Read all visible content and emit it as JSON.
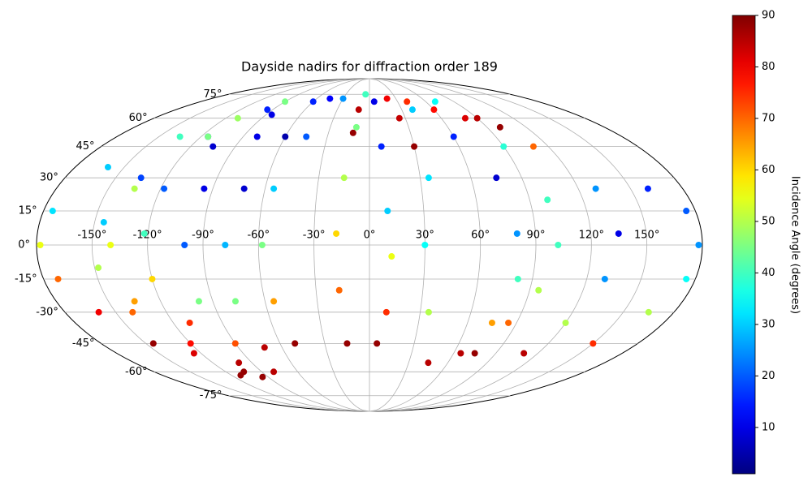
{
  "chart_data": {
    "type": "scatter",
    "projection": "mollweide",
    "title": "Dayside nadirs for diffraction order 189",
    "colorbar_label": "Incidence Angle (degrees)",
    "colormap": "jet",
    "clim": [
      1,
      90
    ],
    "cticks": [
      10,
      20,
      30,
      40,
      50,
      60,
      70,
      80,
      90
    ],
    "xlim": [
      -180,
      180
    ],
    "ylim": [
      -90,
      90
    ],
    "grid": true,
    "xticks": [
      {
        "value": -150,
        "label": "-150°"
      },
      {
        "value": -120,
        "label": "-120°"
      },
      {
        "value": -90,
        "label": "-90°"
      },
      {
        "value": -60,
        "label": "-60°"
      },
      {
        "value": -30,
        "label": "-30°"
      },
      {
        "value": 0,
        "label": "0°"
      },
      {
        "value": 30,
        "label": "30°"
      },
      {
        "value": 60,
        "label": "60°"
      },
      {
        "value": 90,
        "label": "90°"
      },
      {
        "value": 120,
        "label": "120°"
      },
      {
        "value": 150,
        "label": "150°"
      }
    ],
    "yticks": [
      {
        "value": -75,
        "label": "-75°"
      },
      {
        "value": -60,
        "label": "-60°"
      },
      {
        "value": -45,
        "label": "-45°"
      },
      {
        "value": -30,
        "label": "-30°"
      },
      {
        "value": -15,
        "label": "-15°"
      },
      {
        "value": 0,
        "label": "0°"
      },
      {
        "value": 15,
        "label": "15°"
      },
      {
        "value": 30,
        "label": "30°"
      },
      {
        "value": 45,
        "label": "45°"
      },
      {
        "value": 60,
        "label": "60°"
      },
      {
        "value": 75,
        "label": "75°"
      }
    ],
    "tracks": [
      {
        "lon": [
          -110,
          -135,
          -160,
          -175,
          -178,
          -172,
          -160,
          -145
        ],
        "lat": [
          60,
          50,
          35,
          15,
          0,
          -15,
          -30,
          -45
        ],
        "incidence": [
          48,
          40,
          30,
          32,
          55,
          70,
          80,
          88
        ]
      },
      {
        "lon": [
          -95,
          -115,
          -135,
          -145,
          -148,
          -140,
          -125,
          -112
        ],
        "lat": [
          65,
          50,
          30,
          10,
          -10,
          -30,
          -50,
          -62
        ],
        "incidence": [
          15,
          12,
          18,
          30,
          50,
          70,
          82,
          88
        ]
      },
      {
        "lon": [
          -85,
          -105,
          -118,
          -122,
          -120,
          -110,
          -100,
          -95
        ],
        "lat": [
          62,
          45,
          25,
          5,
          -15,
          -35,
          -55,
          -63
        ],
        "incidence": [
          10,
          8,
          20,
          40,
          60,
          75,
          85,
          88
        ]
      },
      {
        "lon": [
          -90,
          -115,
          -135,
          -140,
          -135,
          -120,
          -105
        ],
        "lat": [
          70,
          50,
          25,
          0,
          -25,
          -45,
          -60
        ],
        "incidence": [
          45,
          45,
          50,
          55,
          65,
          78,
          88
        ]
      },
      {
        "lon": [
          -60,
          -80,
          -95,
          -100,
          -98,
          -90,
          -80
        ],
        "lat": [
          70,
          50,
          25,
          0,
          -25,
          -45,
          -60
        ],
        "incidence": [
          15,
          10,
          10,
          20,
          45,
          72,
          85
        ]
      },
      {
        "lon": [
          -45,
          -60,
          -72,
          -78,
          -77,
          -72
        ],
        "lat": [
          72,
          50,
          25,
          0,
          -25,
          -47
        ],
        "incidence": [
          12,
          5,
          8,
          28,
          45,
          85
        ]
      },
      {
        "lon": [
          -30,
          -45,
          -55,
          -58,
          -55,
          -50
        ],
        "lat": [
          72,
          50,
          25,
          0,
          -25,
          -45
        ],
        "incidence": [
          25,
          20,
          30,
          45,
          65,
          88
        ]
      },
      {
        "lon": [
          -5,
          -10,
          -15,
          -18,
          -17,
          -15
        ],
        "lat": [
          75,
          55,
          30,
          5,
          -20,
          -45
        ],
        "incidence": [
          40,
          45,
          50,
          60,
          70,
          88
        ]
      },
      {
        "lon": [
          20,
          25,
          30
        ],
        "lat": [
          72,
          60,
          45
        ],
        "incidence": [
          80,
          84,
          88
        ]
      },
      {
        "lon": [
          -10,
          -12
        ],
        "lat": [
          65,
          52
        ],
        "incidence": [
          85,
          88
        ]
      },
      {
        "lon": [
          5,
          8,
          10,
          12,
          10,
          5
        ],
        "lat": [
          70,
          45,
          15,
          -5,
          -30,
          -45
        ],
        "incidence": [
          10,
          15,
          30,
          55,
          75,
          88
        ]
      },
      {
        "lon": [
          40,
          35,
          30,
          35,
          45
        ],
        "lat": [
          65,
          30,
          0,
          -30,
          -55
        ],
        "incidence": [
          30,
          32,
          35,
          50,
          85
        ]
      },
      {
        "lon": [
          60,
          75,
          80,
          82,
          75,
          65
        ],
        "lat": [
          50,
          30,
          5,
          -15,
          -35,
          -50
        ],
        "incidence": [
          15,
          8,
          25,
          40,
          65,
          85
        ]
      },
      {
        "lon": [
          70,
          90,
          100,
          102,
          95,
          85,
          75
        ],
        "lat": [
          70,
          45,
          20,
          0,
          -20,
          -35,
          -50
        ],
        "incidence": [
          35,
          38,
          40,
          40,
          50,
          70,
          88
        ]
      },
      {
        "lon": [
          90,
          110,
          130,
          135,
          130,
          120,
          110
        ],
        "lat": [
          60,
          45,
          25,
          5,
          -15,
          -35,
          -50
        ],
        "incidence": [
          85,
          70,
          25,
          10,
          25,
          50,
          85
        ]
      },
      {
        "lon": [
          160,
          175,
          178,
          175,
          165,
          150
        ],
        "lat": [
          25,
          15,
          0,
          -15,
          -30,
          -45
        ],
        "incidence": [
          15,
          20,
          25,
          35,
          50,
          75
        ]
      },
      {
        "lon": [
          40,
          60,
          80,
          100
        ],
        "lat": [
          70,
          65,
          60,
          55
        ],
        "incidence": [
          75,
          78,
          82,
          88
        ]
      }
    ]
  }
}
